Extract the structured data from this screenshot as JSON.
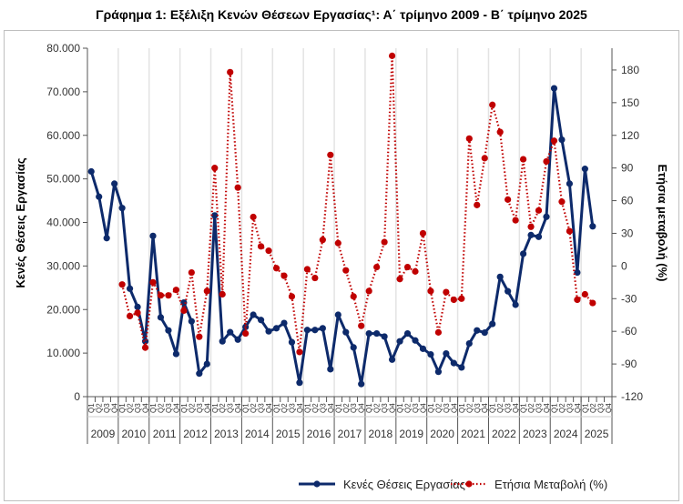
{
  "title": "Γράφημα 1: Εξέλιξη Κενών Θέσεων Εργασίας¹: Α΄ τρίμηνο 2009 - Β΄ τρίμηνο 2025",
  "chart_data": {
    "type": "line",
    "title": "Γράφημα 1: Εξέλιξη Κενών Θέσεων Εργασίας¹: Α΄ τρίμηνο 2009 - Β΄ τρίμηνο 2025",
    "years": [
      "2009",
      "2010",
      "2011",
      "2012",
      "2013",
      "2014",
      "2015",
      "2016",
      "2017",
      "2018",
      "2019",
      "2020",
      "2021",
      "2022",
      "2023",
      "2024",
      "2025"
    ],
    "quarter_labels": [
      "Q1",
      "Q2",
      "Q3",
      "Q4"
    ],
    "ylabel_left": "Κενές Θέσεις Εργασίας",
    "ylabel_right": "Ετήσια μεταβολή (%)",
    "ylim_left": [
      0,
      80000
    ],
    "ylim_right": [
      -120,
      200
    ],
    "yticks_left": [
      "0",
      "10.000",
      "20.000",
      "30.000",
      "40.000",
      "50.000",
      "60.000",
      "70.000",
      "80.000"
    ],
    "yticks_right": [
      "-120",
      "-90",
      "-60",
      "-30",
      "0",
      "30",
      "60",
      "90",
      "120",
      "150",
      "180"
    ],
    "grid": "vertical year separators",
    "legend": "bottom",
    "series": [
      {
        "name": "Κενές Θέσεις Εργασίας",
        "axis": "left",
        "color": "#0d2a6b",
        "style": "solid-with-markers",
        "values": [
          51700,
          45900,
          36400,
          48900,
          43300,
          24800,
          20600,
          12700,
          36900,
          18200,
          15200,
          9800,
          21600,
          17300,
          5300,
          7500,
          41600,
          12700,
          14800,
          13100,
          16000,
          18800,
          17600,
          15000,
          15700,
          16900,
          12500,
          3200,
          15300,
          15300,
          15700,
          6300,
          18800,
          14800,
          11300,
          2900,
          14500,
          14500,
          13800,
          8500,
          12700,
          14500,
          12900,
          11000,
          9700,
          5700,
          9900,
          7700,
          6700,
          12200,
          15200,
          14700,
          16700,
          27500,
          24200,
          21100,
          32800,
          37100,
          36700,
          41300,
          70800,
          59000,
          48900,
          28500,
          52300,
          39100
        ]
      },
      {
        "name": "Ετήσια Μεταβολή (%)",
        "axis": "right",
        "color": "#c00000",
        "style": "dotted-with-markers",
        "values": [
          null,
          null,
          null,
          null,
          -17,
          -46,
          -43,
          -75,
          -15,
          -27,
          -27,
          -22,
          -41,
          -6,
          -65,
          -23,
          90,
          -26,
          178,
          72,
          -62,
          45,
          18,
          14,
          -2,
          -9,
          -28,
          -79,
          -3,
          -11,
          24,
          102,
          21,
          -4,
          -28,
          -55,
          -23,
          -1,
          22,
          193,
          -12,
          -1,
          -5,
          30,
          -23,
          -61,
          -24,
          -31,
          -30,
          117,
          56,
          99,
          148,
          123,
          61,
          42,
          98,
          36,
          51,
          96,
          115,
          59,
          32,
          -31,
          -26,
          -34
        ]
      }
    ]
  }
}
